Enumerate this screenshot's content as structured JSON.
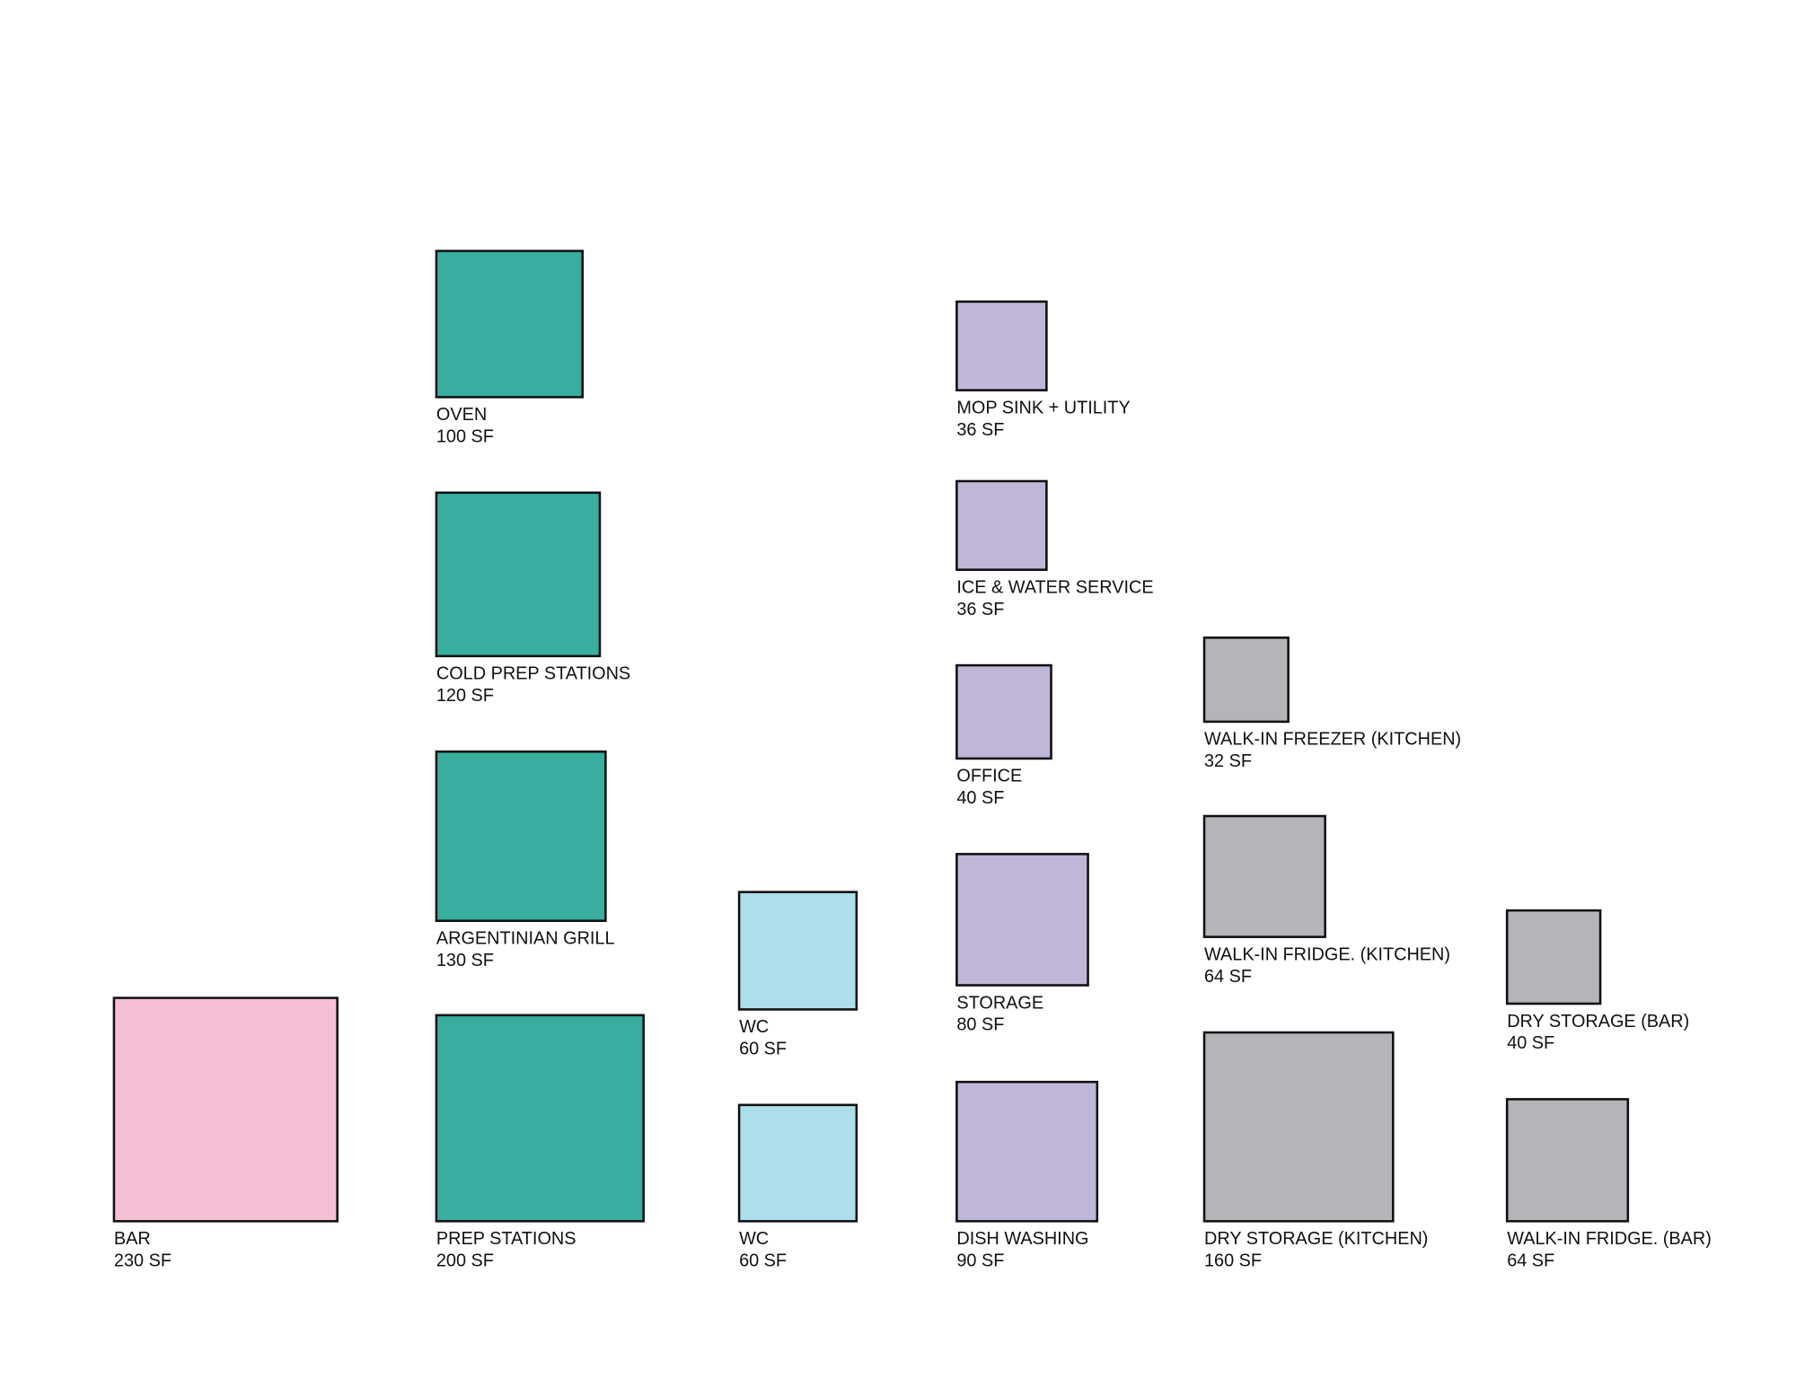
{
  "rooms": [
    {
      "label": "BAR",
      "area": "230 SF"
    },
    {
      "label": "OVEN",
      "area": "100 SF"
    },
    {
      "label": "COLD PREP STATIONS",
      "area": "120 SF"
    },
    {
      "label": "ARGENTINIAN GRILL",
      "area": "130 SF"
    },
    {
      "label": "PREP STATIONS",
      "area": "200 SF"
    },
    {
      "label": "WC",
      "area": "60 SF"
    },
    {
      "label": "WC",
      "area": "60 SF"
    },
    {
      "label": "MOP SINK + UTILITY",
      "area": "36 SF"
    },
    {
      "label": "ICE & WATER SERVICE",
      "area": "36 SF"
    },
    {
      "label": "OFFICE",
      "area": "40 SF"
    },
    {
      "label": "STORAGE",
      "area": "80 SF"
    },
    {
      "label": "DISH WASHING",
      "area": "90 SF"
    },
    {
      "label": "WALK-IN FREEZER (KITCHEN)",
      "area": "32 SF"
    },
    {
      "label": "WALK-IN FRIDGE. (KITCHEN)",
      "area": "64 SF"
    },
    {
      "label": "DRY STORAGE (KITCHEN)",
      "area": "160 SF"
    },
    {
      "label": "DRY STORAGE (BAR)",
      "area": "40 SF"
    },
    {
      "label": "WALK-IN FRIDGE. (BAR)",
      "area": "64 SF"
    }
  ]
}
